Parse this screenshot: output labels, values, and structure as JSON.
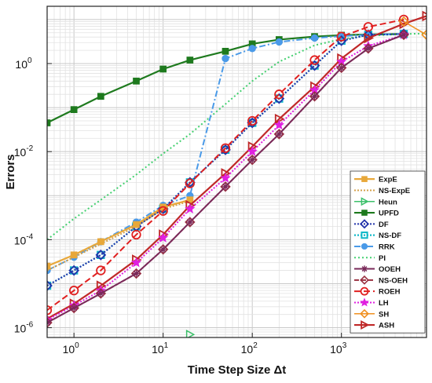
{
  "chart_data": {
    "type": "line",
    "xlabel": "Time Step Size Δt",
    "ylabel": "Errors",
    "xscale": "log",
    "yscale": "log",
    "xlim": [
      0.5,
      9000
    ],
    "ylim": [
      6e-07,
      20
    ],
    "grid": "on (major and minor)",
    "legend_position": "right",
    "x_ticks": [
      {
        "value": 1,
        "base": "10",
        "exp": "0"
      },
      {
        "value": 10,
        "base": "10",
        "exp": "1"
      },
      {
        "value": 100,
        "base": "10",
        "exp": "2"
      },
      {
        "value": 1000,
        "base": "10",
        "exp": "3"
      }
    ],
    "y_ticks": [
      {
        "value": 1e-06,
        "base": "10",
        "exp": "-6"
      },
      {
        "value": 0.0001,
        "base": "10",
        "exp": "-4"
      },
      {
        "value": 0.01,
        "base": "10",
        "exp": "-2"
      },
      {
        "value": 1,
        "base": "10",
        "exp": "0"
      }
    ],
    "series": [
      {
        "name": "ExpE",
        "color": "#e8a83a",
        "dash": "",
        "marker": "square",
        "width": 2.2,
        "x": [
          0.5,
          1,
          2,
          5,
          10,
          20
        ],
        "y": [
          2.5e-05,
          4.5e-05,
          9e-05,
          0.00022,
          0.00055,
          0.0008
        ]
      },
      {
        "name": "NS-ExpE",
        "color": "#d4a04a",
        "dash": "2,2",
        "marker": "none",
        "width": 2,
        "x": [
          0.5,
          1,
          2,
          5,
          10,
          20
        ],
        "y": [
          2e-05,
          4e-05,
          8e-05,
          0.0002,
          0.0005,
          0.00075
        ]
      },
      {
        "name": "Heun",
        "color": "#3cc06a",
        "dash": "",
        "marker": "triangle-right",
        "width": 1.5,
        "x": [
          20
        ],
        "y": [
          7e-07
        ]
      },
      {
        "name": "UPFD",
        "color": "#1e7a1e",
        "dash": "",
        "marker": "square",
        "width": 2.2,
        "x": [
          0.5,
          1,
          2,
          5,
          10,
          20,
          50,
          100,
          200,
          500,
          1000,
          2000,
          5000
        ],
        "y": [
          0.045,
          0.09,
          0.18,
          0.4,
          0.75,
          1.2,
          1.9,
          2.8,
          3.5,
          4.1,
          4.4,
          4.6,
          4.7
        ]
      },
      {
        "name": "DF",
        "color": "#2233aa",
        "dash": "2,2",
        "marker": "diamond",
        "width": 2,
        "x": [
          0.5,
          1,
          2,
          5,
          10,
          20,
          50,
          100,
          200,
          500,
          1000,
          2000,
          5000
        ],
        "y": [
          9e-06,
          2e-05,
          4.5e-05,
          0.0002,
          0.0005,
          0.002,
          0.011,
          0.045,
          0.16,
          0.9,
          3.3,
          4.5,
          4.7
        ]
      },
      {
        "name": "NS-DF",
        "color": "#10b8c8",
        "dash": "2,2",
        "marker": "square-open",
        "width": 2.2,
        "x": [
          0.5,
          1,
          2,
          5,
          10,
          20,
          50,
          100,
          200,
          500,
          1000,
          2000,
          5000
        ],
        "y": [
          9e-06,
          2e-05,
          4.5e-05,
          0.0002,
          0.0005,
          0.002,
          0.011,
          0.045,
          0.16,
          0.9,
          3.3,
          4.5,
          4.7
        ]
      },
      {
        "name": "RRK",
        "color": "#4a9ae8",
        "dash": "8,3,2,3",
        "marker": "circle-filled",
        "width": 2,
        "x": [
          0.5,
          1,
          2,
          5,
          10,
          20,
          50,
          100,
          200,
          500,
          1000,
          2000,
          5000
        ],
        "y": [
          2e-05,
          4e-05,
          9e-05,
          0.00025,
          0.0006,
          0.001,
          1.3,
          2.2,
          3.1,
          3.8,
          4.2,
          4.5,
          4.7
        ]
      },
      {
        "name": "PI",
        "color": "#44d070",
        "dash": "2,3",
        "marker": "none",
        "width": 2,
        "x": [
          0.5,
          1,
          2,
          5,
          10,
          20,
          50,
          100,
          200,
          500,
          1000,
          2000,
          5000,
          9000
        ],
        "y": [
          0.0001,
          0.0003,
          0.0008,
          0.003,
          0.009,
          0.025,
          0.12,
          0.4,
          1.1,
          2.6,
          3.6,
          4.3,
          4.7,
          4.8
        ]
      },
      {
        "name": "OOEH",
        "color": "#7a2a5a",
        "dash": "",
        "marker": "asterisk",
        "width": 2,
        "x": [
          0.5,
          1,
          2,
          5,
          10,
          20,
          50,
          100,
          200,
          500,
          1000,
          2000,
          5000
        ],
        "y": [
          1.3e-06,
          2.8e-06,
          6e-06,
          1.7e-05,
          6e-05,
          0.00025,
          0.0016,
          0.0065,
          0.025,
          0.18,
          0.8,
          2.2,
          4.5
        ]
      },
      {
        "name": "NS-OEH",
        "color": "#9a3040",
        "dash": "6,3",
        "marker": "diamond-open",
        "width": 2,
        "x": [
          0.5,
          1,
          2,
          5,
          10,
          20,
          50,
          100,
          200,
          500,
          1000,
          2000,
          5000
        ],
        "y": [
          1.3e-06,
          2.8e-06,
          6e-06,
          1.7e-05,
          6e-05,
          0.00025,
          0.0016,
          0.0065,
          0.025,
          0.18,
          0.8,
          2.2,
          4.5
        ]
      },
      {
        "name": "ROEH",
        "color": "#e02020",
        "dash": "8,4",
        "marker": "circle-open",
        "width": 2,
        "x": [
          0.5,
          1,
          2,
          5,
          10,
          20,
          50,
          100,
          200,
          500,
          1000,
          2000,
          5000
        ],
        "y": [
          2.5e-06,
          7e-06,
          2e-05,
          0.00013,
          0.00045,
          0.0019,
          0.012,
          0.05,
          0.2,
          1.2,
          4.1,
          6.8,
          10
        ]
      },
      {
        "name": "LH",
        "color": "#e020e0",
        "dash": "2,2",
        "marker": "star",
        "width": 2,
        "x": [
          0.5,
          1,
          2,
          5,
          10,
          20,
          50,
          100,
          200,
          500,
          1000,
          2000,
          5000
        ],
        "y": [
          1.5e-06,
          3.2e-06,
          7e-06,
          3e-05,
          0.00011,
          0.0005,
          0.0025,
          0.01,
          0.04,
          0.25,
          1.1,
          2.5,
          4.5
        ]
      },
      {
        "name": "SH",
        "color": "#f09020",
        "dash": "",
        "marker": "diamond-open",
        "width": 1.5,
        "x": [
          5000,
          9000
        ],
        "y": [
          9,
          4.5
        ]
      },
      {
        "name": "ASH",
        "color": "#c02828",
        "dash": "",
        "marker": "triangle-right-open",
        "width": 2.2,
        "x": [
          0.5,
          1,
          2,
          5,
          10,
          20,
          50,
          100,
          200,
          500,
          1000,
          2000,
          5000,
          9000
        ],
        "y": [
          1.6e-06,
          3.5e-06,
          9e-06,
          3.5e-05,
          0.00013,
          0.0006,
          0.0032,
          0.013,
          0.055,
          0.3,
          1.3,
          3.8,
          8,
          12
        ]
      }
    ]
  }
}
